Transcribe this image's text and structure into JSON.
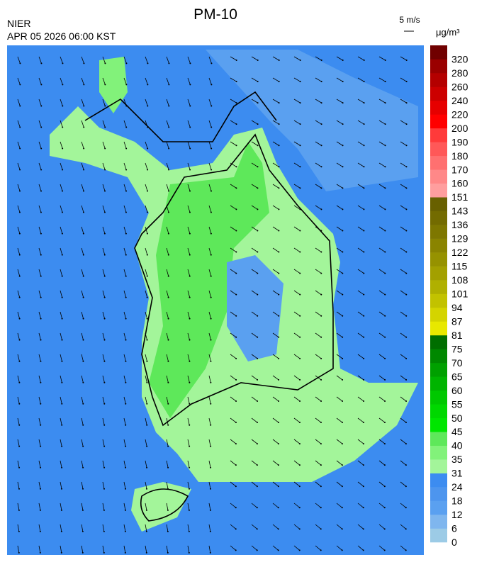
{
  "header": {
    "agency": "NIER",
    "title": "PM-10",
    "datetime": "APR 05 2026 06:00 KST",
    "wind_scale": "5 m/s",
    "unit": "μg/m³"
  },
  "colorbar": {
    "levels": [
      0,
      6,
      12,
      18,
      24,
      31,
      35,
      40,
      45,
      50,
      55,
      60,
      65,
      70,
      75,
      81,
      87,
      94,
      101,
      108,
      115,
      122,
      129,
      136,
      143,
      151,
      160,
      170,
      180,
      190,
      200,
      220,
      240,
      260,
      280,
      320
    ],
    "colors": [
      "#9ccbe6",
      "#7fb6ee",
      "#5aa0f0",
      "#4d95ee",
      "#3c8cf0",
      "#a3f59a",
      "#82f27a",
      "#5ee85a",
      "#00e600",
      "#00d800",
      "#00c800",
      "#00b400",
      "#00a000",
      "#008800",
      "#006e00",
      "#e8e800",
      "#d4d400",
      "#c2c200",
      "#b0b000",
      "#a3a000",
      "#969200",
      "#8a8400",
      "#7e7700",
      "#736b00",
      "#686000",
      "#ff9e9e",
      "#ff8888",
      "#ff7070",
      "#ff5858",
      "#ff3a3a",
      "#ff0000",
      "#e60000",
      "#cc0000",
      "#b40000",
      "#9a0000",
      "#700000"
    ]
  }
}
